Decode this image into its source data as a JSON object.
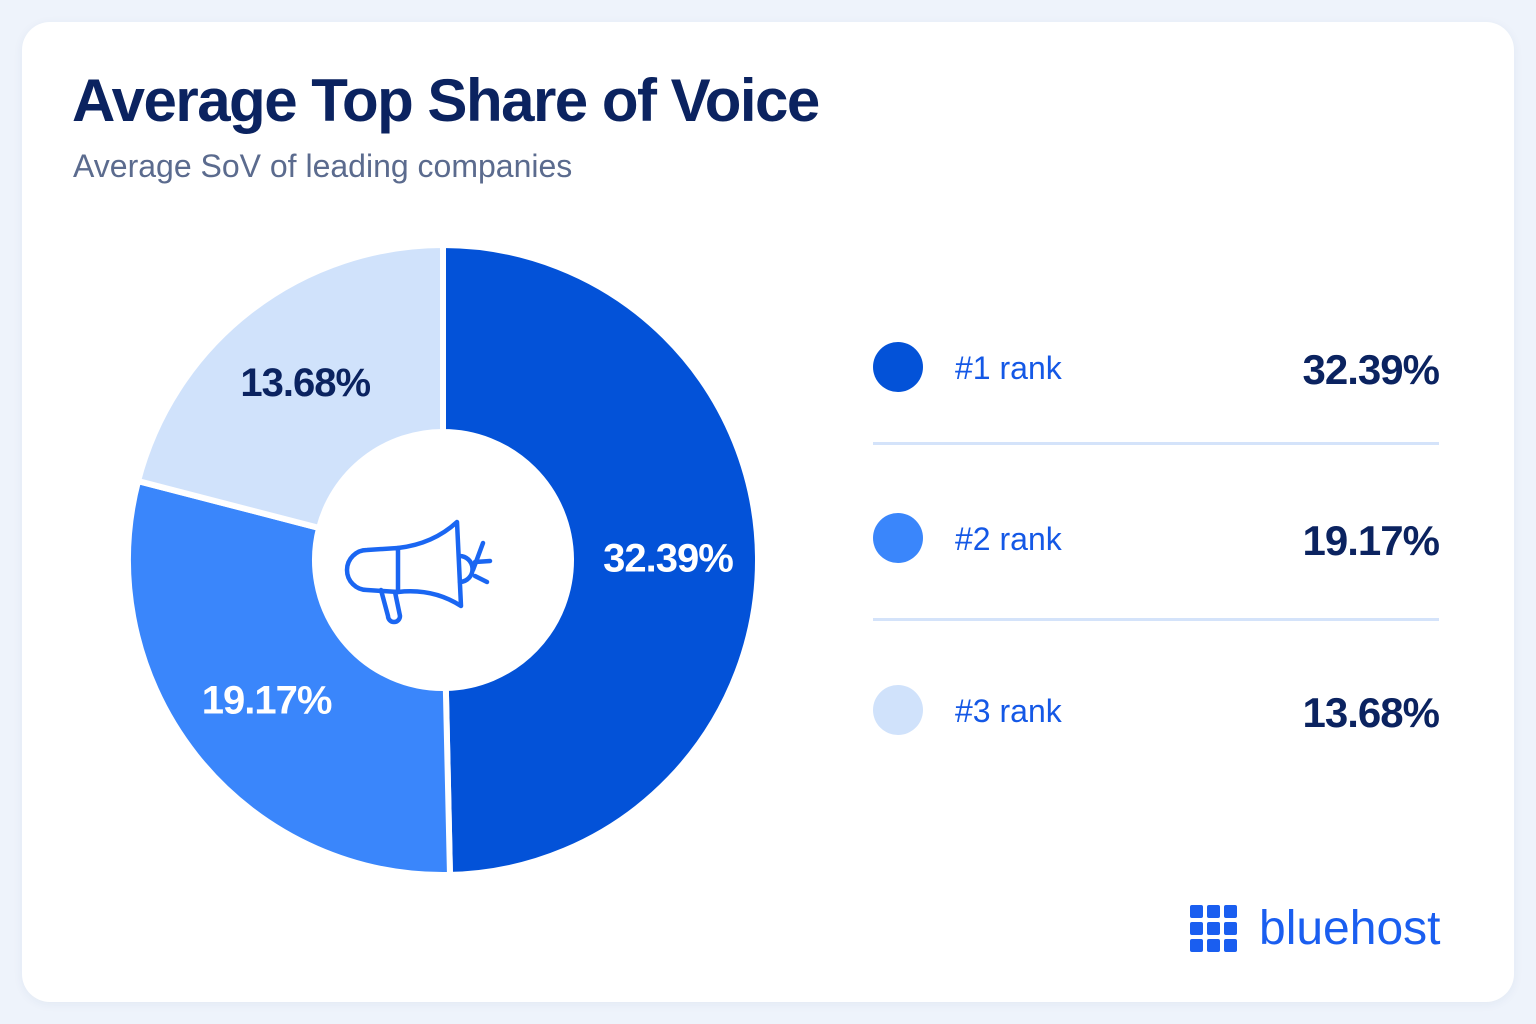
{
  "card": {
    "title": "Average Top Share of Voice",
    "subtitle": "Average SoV of leading companies"
  },
  "chart_data": {
    "type": "pie",
    "variant": "donut",
    "title": "Average Top Share of Voice",
    "subtitle": "Average SoV of leading companies",
    "categories": [
      "#1 rank",
      "#2 rank",
      "#3 rank"
    ],
    "values": [
      32.39,
      19.17,
      13.68
    ],
    "labels": [
      "32.39%",
      "19.17%",
      "13.68%"
    ],
    "colors": [
      "#0352d8",
      "#3a86fb",
      "#d0e2fb"
    ],
    "label_colors": [
      "#ffffff",
      "#ffffff",
      "#0b2360"
    ],
    "unit": "%",
    "start_angle_deg": 0,
    "direction": "clockwise",
    "center_icon": "megaphone-icon",
    "legend_position": "right"
  },
  "legend": {
    "items": [
      {
        "label": "#1 rank",
        "value": "32.39%",
        "color": "#0352d8"
      },
      {
        "label": "#2 rank",
        "value": "19.17%",
        "color": "#3a86fb"
      },
      {
        "label": "#3 rank",
        "value": "13.68%",
        "color": "#d0e2fb"
      }
    ]
  },
  "brand": {
    "name": "bluehost",
    "icon": "bluehost-grid-logo-icon",
    "color": "#1a5ef0"
  }
}
